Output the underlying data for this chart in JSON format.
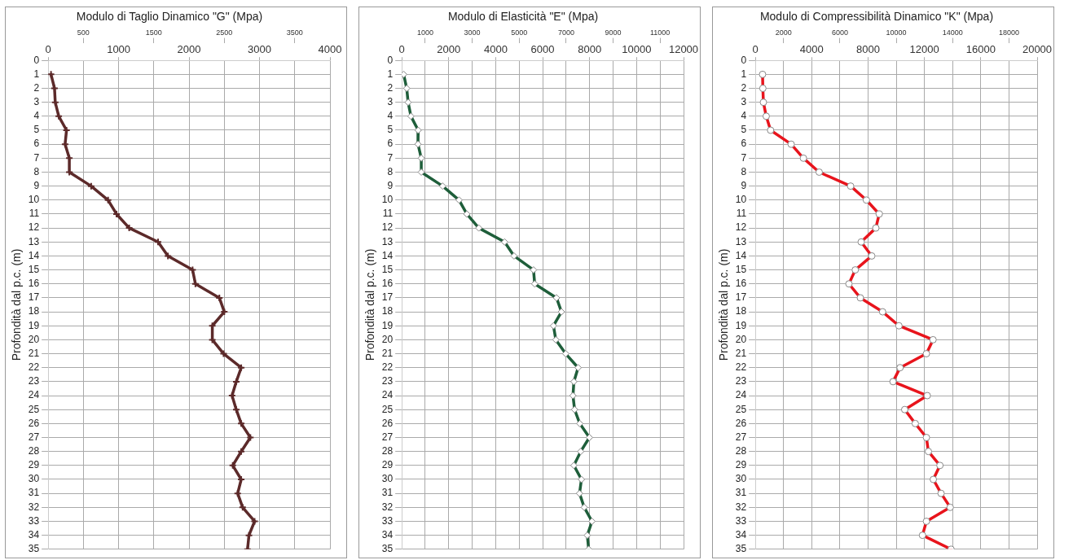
{
  "chart_data": [
    {
      "type": "line",
      "title": "Modulo di Taglio Dinamico \"G\" (Mpa)",
      "ylabel": "Profondità dal p.c. (m)",
      "xlim": [
        0,
        4000
      ],
      "xticks": [
        0,
        1000,
        2000,
        3000,
        4000
      ],
      "x2lim": [
        0,
        4000
      ],
      "x2ticks": [
        500,
        1500,
        2500,
        3500
      ],
      "ylim": [
        35,
        0
      ],
      "yticks": [
        0,
        1,
        2,
        3,
        4,
        5,
        6,
        7,
        8,
        9,
        10,
        11,
        12,
        13,
        14,
        15,
        16,
        17,
        18,
        19,
        20,
        21,
        22,
        23,
        24,
        25,
        26,
        27,
        28,
        29,
        30,
        31,
        32,
        33,
        34,
        35
      ],
      "grid": true,
      "marker": "cross",
      "line_style": "solid",
      "series": [
        {
          "color": "#5c2a2a",
          "x": [
            40,
            90,
            100,
            150,
            260,
            240,
            300,
            300,
            610,
            850,
            970,
            1150,
            1560,
            1700,
            2050,
            2090,
            2430,
            2500,
            2330,
            2330,
            2490,
            2740,
            2670,
            2610,
            2670,
            2740,
            2870,
            2740,
            2620,
            2740,
            2690,
            2760,
            2930,
            2850,
            2830
          ],
          "values": [
            1,
            2,
            3,
            4,
            5,
            6,
            7,
            8,
            9,
            10,
            11,
            12,
            13,
            14,
            15,
            16,
            17,
            18,
            19,
            20,
            21,
            22,
            23,
            24,
            25,
            26,
            27,
            28,
            29,
            30,
            31,
            32,
            33,
            34,
            35
          ]
        }
      ]
    },
    {
      "type": "line",
      "title": "Modulo di Elasticità \"E\" (Mpa)",
      "ylabel": "Profondità dal p.c. (m)",
      "xlim": [
        0,
        12000
      ],
      "xticks": [
        0,
        2000,
        4000,
        6000,
        8000,
        10000,
        12000
      ],
      "x2lim": [
        0,
        12000
      ],
      "x2ticks": [
        1000,
        3000,
        5000,
        7000,
        9000,
        11000
      ],
      "ylim": [
        35,
        0
      ],
      "yticks": [
        0,
        1,
        2,
        3,
        4,
        5,
        6,
        7,
        8,
        9,
        10,
        11,
        12,
        13,
        14,
        15,
        16,
        17,
        18,
        19,
        20,
        21,
        22,
        23,
        24,
        25,
        26,
        27,
        28,
        29,
        30,
        31,
        32,
        33,
        34,
        35
      ],
      "grid": true,
      "marker": "diamond",
      "line_style": "solid",
      "series": [
        {
          "color": "#1e5e3a",
          "x": [
            80,
            210,
            270,
            390,
            700,
            690,
            830,
            830,
            1740,
            2440,
            2770,
            3280,
            4380,
            4780,
            5610,
            5660,
            6590,
            6800,
            6460,
            6560,
            6980,
            7510,
            7330,
            7290,
            7360,
            7580,
            7990,
            7620,
            7330,
            7650,
            7570,
            7770,
            8100,
            7900,
            7960
          ],
          "values": [
            1,
            2,
            3,
            4,
            5,
            6,
            7,
            8,
            9,
            10,
            11,
            12,
            13,
            14,
            15,
            16,
            17,
            18,
            19,
            20,
            21,
            22,
            23,
            24,
            25,
            26,
            27,
            28,
            29,
            30,
            31,
            32,
            33,
            34,
            35
          ]
        }
      ]
    },
    {
      "type": "line",
      "title": "Modulo di Compressibilità Dinamico \"K\" (Mpa)",
      "ylabel": "Profondità dal p.c. (m)",
      "xlim": [
        0,
        20000
      ],
      "xticks": [
        0,
        4000,
        8000,
        12000,
        16000,
        20000
      ],
      "x2lim": [
        0,
        20000
      ],
      "x2ticks": [
        2000,
        6000,
        10000,
        14000,
        18000
      ],
      "ylim": [
        35,
        0
      ],
      "yticks": [
        0,
        1,
        2,
        3,
        4,
        5,
        6,
        7,
        8,
        9,
        10,
        11,
        12,
        13,
        14,
        15,
        16,
        17,
        18,
        19,
        20,
        21,
        22,
        23,
        24,
        25,
        26,
        27,
        28,
        29,
        30,
        31,
        32,
        33,
        34,
        35
      ],
      "grid": true,
      "marker": "circle",
      "line_style": "solid",
      "series": [
        {
          "color": "#e8141c",
          "x": [
            510,
            530,
            570,
            770,
            1080,
            2540,
            3410,
            4530,
            6760,
            7880,
            8790,
            8550,
            7510,
            8260,
            7090,
            6640,
            7450,
            9030,
            10190,
            12610,
            12140,
            10270,
            9770,
            12200,
            10600,
            11350,
            12140,
            12280,
            13100,
            12630,
            13180,
            13830,
            12140,
            11860,
            13890
          ],
          "values": [
            1,
            2,
            3,
            4,
            5,
            6,
            7,
            8,
            9,
            10,
            11,
            12,
            13,
            14,
            15,
            16,
            17,
            18,
            19,
            20,
            21,
            22,
            23,
            24,
            25,
            26,
            27,
            28,
            29,
            30,
            31,
            32,
            33,
            34,
            35
          ]
        }
      ]
    }
  ]
}
